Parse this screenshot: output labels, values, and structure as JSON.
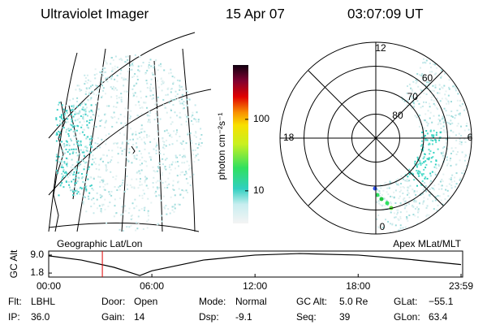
{
  "header": {
    "title": "Ultraviolet Imager",
    "date": "15 Apr 07",
    "time": "03:07:09 UT"
  },
  "map": {
    "label": "Geographic Lat/Lon"
  },
  "colorbar": {
    "label": "photon cm⁻²s⁻¹",
    "clim": [
      3.5,
      575
    ],
    "ticks": [
      10,
      100
    ],
    "log": true
  },
  "polar": {
    "label": "Apex MLat/MLT",
    "rlim": [
      90,
      50
    ],
    "lat_rings": [
      80,
      70,
      60
    ],
    "mlt_labels": [
      {
        "value": 12,
        "label": "12"
      },
      {
        "value": 18,
        "label": "18"
      },
      {
        "value": 6,
        "label": "6"
      },
      {
        "value": 0,
        "label": "0"
      }
    ]
  },
  "chart_data": {
    "type": "line",
    "ylabel": "GC Alt",
    "x": [
      0,
      1.9,
      3.8,
      5.3,
      6,
      9,
      12,
      14.6,
      18,
      20.8,
      23.983
    ],
    "series": [
      {
        "color": "#000000",
        "values": [
          8.7,
          7.0,
          4.1,
          0.8,
          2.7,
          7.0,
          9.0,
          9.6,
          9.0,
          7.4,
          5.2
        ]
      }
    ],
    "xlim": [
      0,
      23.983
    ],
    "ylim": [
      0.2,
      10.6
    ],
    "xticks": [
      {
        "value": 0,
        "label": "00:00"
      },
      {
        "value": 6,
        "label": "06:00"
      },
      {
        "value": 12,
        "label": "12:00"
      },
      {
        "value": 18,
        "label": "18:00"
      },
      {
        "value": 23.983,
        "label": "23:59"
      }
    ],
    "yticks": [
      1.8,
      {
        "value": 9,
        "label": "9.0"
      }
    ],
    "marker_x": 3.12,
    "marker_color": "#e00000"
  },
  "footer": {
    "rows": [
      [
        [
          "Flt:",
          "LBHL"
        ],
        [
          "Door:",
          "Open"
        ],
        [
          "Mode:",
          "Normal"
        ],
        [
          "GC Alt:",
          "5.0 Re"
        ],
        [
          "GLat:",
          "−55.1"
        ]
      ],
      [
        [
          "IP:",
          "36.0"
        ],
        [
          "Gain:",
          "14"
        ],
        [
          "Dsp:",
          "-9.1"
        ],
        [
          "Seq:",
          "39"
        ],
        [
          "GLon:",
          "63.4"
        ]
      ]
    ]
  }
}
